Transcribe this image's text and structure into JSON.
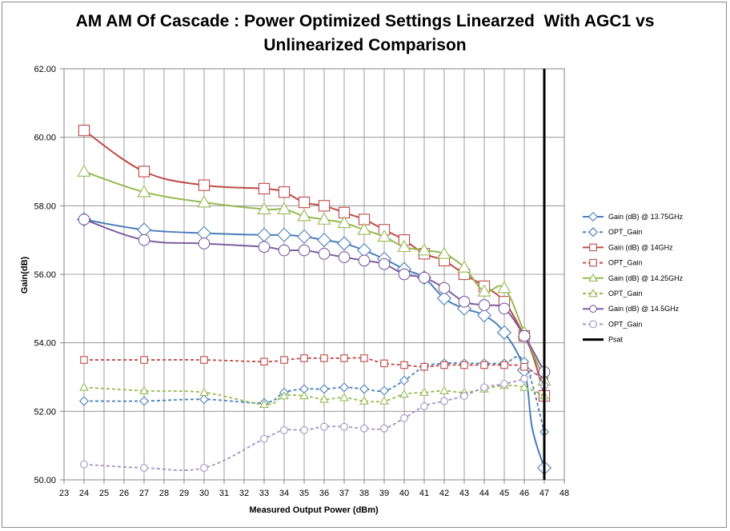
{
  "chart_data": {
    "type": "line",
    "title_lines": [
      "AM AM Of Cascade : Power Optimized Settings Linearzed  With AGC1 vs",
      "Unlinearized Comparison"
    ],
    "xlabel": "Measured Output Power (dBm)",
    "ylabel": "Gain(dB)",
    "xlim": [
      23,
      48
    ],
    "ylim": [
      50,
      62
    ],
    "x_ticks": [
      "23",
      "24",
      "25",
      "26",
      "27",
      "28",
      "29",
      "30",
      "31",
      "32",
      "33",
      "34",
      "35",
      "36",
      "37",
      "38",
      "39",
      "40",
      "41",
      "42",
      "43",
      "44",
      "45",
      "46",
      "47",
      "48"
    ],
    "y_ticks": [
      "50.00",
      "52.00",
      "54.00",
      "56.00",
      "58.00",
      "60.00",
      "62.00"
    ],
    "grid": true,
    "legend_position": "right",
    "series": [
      {
        "name": "Gain (dB) @ 13.75GHz",
        "color": "#4a7ebb",
        "dash": false,
        "marker": "diamond",
        "points": [
          [
            24,
            57.6
          ],
          [
            27,
            57.3
          ],
          [
            30,
            57.2
          ],
          [
            33,
            57.15
          ],
          [
            34,
            57.15
          ],
          [
            35,
            57.1
          ],
          [
            36,
            57.0
          ],
          [
            37,
            56.9
          ],
          [
            38,
            56.7
          ],
          [
            39,
            56.45
          ],
          [
            40,
            56.15
          ],
          [
            41,
            55.9
          ],
          [
            42,
            55.3
          ],
          [
            43,
            55.0
          ],
          [
            44,
            54.8
          ],
          [
            45,
            54.3
          ],
          [
            46,
            53.2
          ],
          [
            46.4,
            51.5
          ],
          [
            47,
            50.35
          ]
        ]
      },
      {
        "name": "OPT_Gain",
        "color": "#4a7ebb",
        "dash": true,
        "marker": "diamond",
        "points": [
          [
            24,
            52.3
          ],
          [
            27,
            52.3
          ],
          [
            30,
            52.35
          ],
          [
            33,
            52.25
          ],
          [
            34,
            52.55
          ],
          [
            35,
            52.65
          ],
          [
            36,
            52.65
          ],
          [
            37,
            52.7
          ],
          [
            38,
            52.65
          ],
          [
            39,
            52.6
          ],
          [
            40,
            52.9
          ],
          [
            41,
            53.3
          ],
          [
            42,
            53.4
          ],
          [
            43,
            53.4
          ],
          [
            44,
            53.4
          ],
          [
            45,
            53.4
          ],
          [
            46,
            53.45
          ],
          [
            47,
            51.4
          ]
        ]
      },
      {
        "name": "Gain (dB) @ 14GHz",
        "color": "#be4b48",
        "dash": false,
        "marker": "square",
        "points": [
          [
            24,
            60.2
          ],
          [
            27,
            59.0
          ],
          [
            30,
            58.6
          ],
          [
            33,
            58.5
          ],
          [
            34,
            58.4
          ],
          [
            35,
            58.1
          ],
          [
            36,
            58.0
          ],
          [
            37,
            57.8
          ],
          [
            38,
            57.6
          ],
          [
            39,
            57.3
          ],
          [
            40,
            57.0
          ],
          [
            41,
            56.6
          ],
          [
            42,
            56.4
          ],
          [
            43,
            56.0
          ],
          [
            44,
            55.65
          ],
          [
            45,
            55.2
          ],
          [
            46,
            54.2
          ],
          [
            46.5,
            53.5
          ],
          [
            47,
            52.45
          ]
        ]
      },
      {
        "name": "OPT_Gain",
        "color": "#be4b48",
        "dash": true,
        "marker": "square",
        "points": [
          [
            24,
            53.5
          ],
          [
            27,
            53.5
          ],
          [
            30,
            53.5
          ],
          [
            33,
            53.45
          ],
          [
            34,
            53.5
          ],
          [
            35,
            53.55
          ],
          [
            36,
            53.55
          ],
          [
            37,
            53.55
          ],
          [
            38,
            53.55
          ],
          [
            39,
            53.4
          ],
          [
            40,
            53.35
          ],
          [
            41,
            53.3
          ],
          [
            42,
            53.35
          ],
          [
            43,
            53.35
          ],
          [
            44,
            53.35
          ],
          [
            45,
            53.35
          ],
          [
            46,
            53.3
          ],
          [
            47,
            52.9
          ]
        ]
      },
      {
        "name": "Gain (dB) @ 14.25GHz",
        "color": "#98b954",
        "dash": false,
        "marker": "triangle",
        "points": [
          [
            24,
            59.0
          ],
          [
            27,
            58.4
          ],
          [
            30,
            58.1
          ],
          [
            33,
            57.9
          ],
          [
            34,
            57.9
          ],
          [
            35,
            57.7
          ],
          [
            36,
            57.6
          ],
          [
            37,
            57.5
          ],
          [
            38,
            57.3
          ],
          [
            39,
            57.1
          ],
          [
            40,
            56.8
          ],
          [
            41,
            56.7
          ],
          [
            42,
            56.6
          ],
          [
            43,
            56.2
          ],
          [
            44,
            55.5
          ],
          [
            45,
            55.6
          ],
          [
            46,
            54.3
          ],
          [
            47,
            52.9
          ]
        ]
      },
      {
        "name": "OPT_Gain",
        "color": "#98b954",
        "dash": true,
        "marker": "triangle",
        "points": [
          [
            24,
            52.7
          ],
          [
            27,
            52.6
          ],
          [
            30,
            52.55
          ],
          [
            33,
            52.2
          ],
          [
            34,
            52.45
          ],
          [
            35,
            52.45
          ],
          [
            36,
            52.35
          ],
          [
            37,
            52.4
          ],
          [
            38,
            52.3
          ],
          [
            39,
            52.3
          ],
          [
            40,
            52.5
          ],
          [
            41,
            52.55
          ],
          [
            42,
            52.6
          ],
          [
            43,
            52.55
          ],
          [
            44,
            52.65
          ],
          [
            45,
            52.75
          ],
          [
            46,
            52.7
          ],
          [
            47,
            52.45
          ]
        ]
      },
      {
        "name": "Gain (dB) @ 14.5GHz",
        "color": "#7d5fa0",
        "dash": false,
        "marker": "circle",
        "points": [
          [
            24,
            57.6
          ],
          [
            27,
            57.0
          ],
          [
            30,
            56.9
          ],
          [
            33,
            56.8
          ],
          [
            34,
            56.7
          ],
          [
            35,
            56.7
          ],
          [
            36,
            56.6
          ],
          [
            37,
            56.5
          ],
          [
            38,
            56.4
          ],
          [
            39,
            56.3
          ],
          [
            40,
            56.0
          ],
          [
            41,
            55.9
          ],
          [
            42,
            55.6
          ],
          [
            43,
            55.2
          ],
          [
            44,
            55.1
          ],
          [
            45,
            55.0
          ],
          [
            46,
            54.2
          ],
          [
            46.5,
            53.7
          ],
          [
            47,
            53.15
          ]
        ]
      },
      {
        "name": "OPT_Gain",
        "color": "#a594c6",
        "dash": true,
        "marker": "circle",
        "points": [
          [
            24,
            50.45
          ],
          [
            27,
            50.35
          ],
          [
            30,
            50.35
          ],
          [
            33,
            51.2
          ],
          [
            34,
            51.45
          ],
          [
            35,
            51.45
          ],
          [
            36,
            51.55
          ],
          [
            37,
            51.55
          ],
          [
            38,
            51.5
          ],
          [
            39,
            51.5
          ],
          [
            40,
            51.8
          ],
          [
            41,
            52.15
          ],
          [
            42,
            52.3
          ],
          [
            43,
            52.45
          ],
          [
            44,
            52.7
          ],
          [
            45,
            52.8
          ],
          [
            46,
            52.95
          ],
          [
            46.6,
            53.1
          ],
          [
            47,
            52.75
          ]
        ]
      },
      {
        "name": "Psat",
        "color": "#000000",
        "dash": false,
        "marker": "none",
        "vertical": true,
        "points": [
          [
            47,
            50
          ],
          [
            47,
            62
          ]
        ]
      }
    ]
  }
}
